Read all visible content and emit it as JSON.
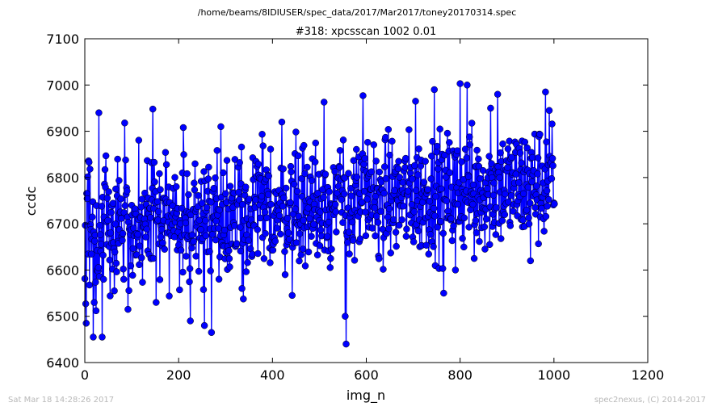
{
  "figure": {
    "suptitle": "/home/beams/8IDIUSER/spec_data/2017/Mar2017/toney20170314.spec",
    "footer_left": "Sat Mar 18 14:28:26 2017",
    "footer_right": "spec2nexus, (C) 2014-2017"
  },
  "chart_data": {
    "type": "line",
    "title": "#318: xpcsscan 1002 0.01",
    "xlabel": "img_n",
    "ylabel": "ccdc",
    "xlim": [
      0,
      1200
    ],
    "ylim": [
      6400,
      7100
    ],
    "xticks": [
      "0",
      "200",
      "400",
      "600",
      "800",
      "1000",
      "1200"
    ],
    "yticks": [
      "6400",
      "6500",
      "6600",
      "6700",
      "6800",
      "6900",
      "7000",
      "7100"
    ],
    "grid": false,
    "marker": "circle",
    "color": "#0000ff",
    "n_points": 1002,
    "trend": {
      "start_mean": 6690,
      "end_mean": 6790,
      "spread": 120
    },
    "notable_points": [
      {
        "x": 2,
        "y": 6527
      },
      {
        "x": 3,
        "y": 6485
      },
      {
        "x": 8,
        "y": 6836
      },
      {
        "x": 18,
        "y": 6455
      },
      {
        "x": 24,
        "y": 6512
      },
      {
        "x": 30,
        "y": 6940
      },
      {
        "x": 37,
        "y": 6455
      },
      {
        "x": 40,
        "y": 6580
      },
      {
        "x": 45,
        "y": 6847
      },
      {
        "x": 63,
        "y": 6555
      },
      {
        "x": 85,
        "y": 6918
      },
      {
        "x": 92,
        "y": 6515
      },
      {
        "x": 145,
        "y": 6948
      },
      {
        "x": 152,
        "y": 6530
      },
      {
        "x": 210,
        "y": 6908
      },
      {
        "x": 225,
        "y": 6490
      },
      {
        "x": 255,
        "y": 6480
      },
      {
        "x": 270,
        "y": 6465
      },
      {
        "x": 290,
        "y": 6910
      },
      {
        "x": 420,
        "y": 6920
      },
      {
        "x": 510,
        "y": 6963
      },
      {
        "x": 555,
        "y": 6500
      },
      {
        "x": 557,
        "y": 6440
      },
      {
        "x": 593,
        "y": 6977
      },
      {
        "x": 705,
        "y": 6965
      },
      {
        "x": 745,
        "y": 6990
      },
      {
        "x": 765,
        "y": 6550
      },
      {
        "x": 790,
        "y": 6600
      },
      {
        "x": 800,
        "y": 7003
      },
      {
        "x": 815,
        "y": 7000
      },
      {
        "x": 830,
        "y": 6625
      },
      {
        "x": 865,
        "y": 6950
      },
      {
        "x": 880,
        "y": 6980
      },
      {
        "x": 950,
        "y": 6620
      },
      {
        "x": 982,
        "y": 6985
      },
      {
        "x": 990,
        "y": 6945
      },
      {
        "x": 1000,
        "y": 6745
      },
      {
        "x": 1001,
        "y": 6743
      }
    ]
  }
}
